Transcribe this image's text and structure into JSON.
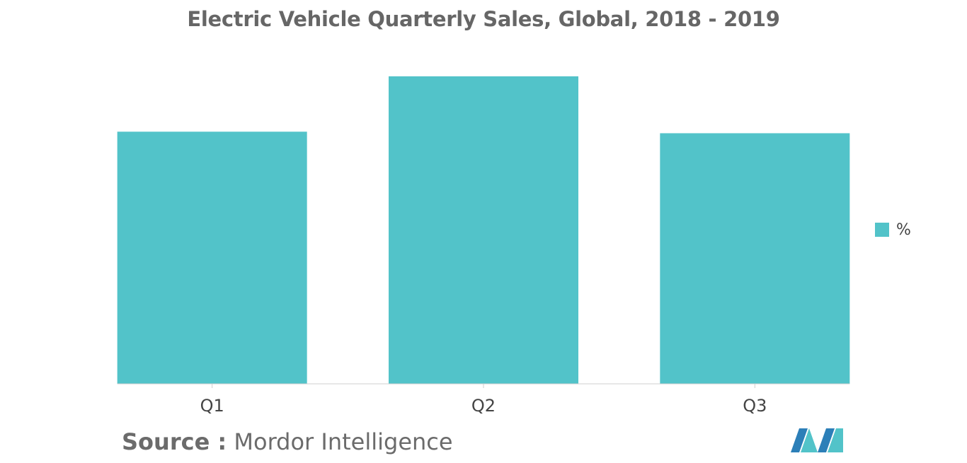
{
  "title": "Electric Vehicle Quarterly Sales, Global, 2018 - 2019",
  "legend": {
    "label": "%",
    "color": "#52c3c9"
  },
  "source": {
    "label": "Source :",
    "value": "Mordor Intelligence"
  },
  "logo": {
    "icon": "mordor-intelligence-logo-icon",
    "colors": [
      "#2c7fb8",
      "#52c3c9"
    ]
  },
  "chart_data": {
    "type": "bar",
    "categories": [
      "Q1",
      "Q2",
      "Q3"
    ],
    "series": [
      {
        "name": "%",
        "values": [
          82,
          100,
          81.5
        ]
      }
    ],
    "ylim": [
      0,
      100
    ],
    "grid": false,
    "legend_position": "right",
    "colors": {
      "bar": "#52c3c9",
      "axis": "#cfcfcf",
      "tick_label": "#444444"
    }
  }
}
